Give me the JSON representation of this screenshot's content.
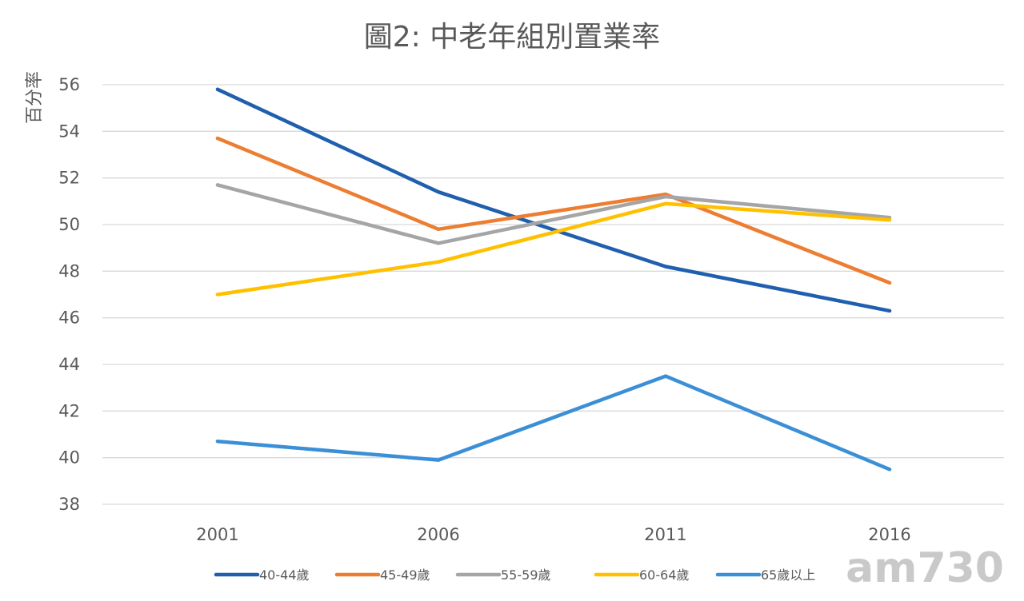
{
  "chart_data": {
    "type": "line",
    "title": "圖2: 中老年組別置業率",
    "xlabel": "",
    "ylabel": "百分率",
    "categories": [
      "2001",
      "2006",
      "2011",
      "2016"
    ],
    "ylim": [
      38,
      56
    ],
    "yticks": [
      38,
      40,
      42,
      44,
      46,
      48,
      50,
      52,
      54,
      56
    ],
    "grid": true,
    "legend_position": "bottom",
    "series": [
      {
        "name": "40-44歲",
        "color": "#1f5fae",
        "values": [
          55.8,
          51.4,
          48.2,
          46.3
        ]
      },
      {
        "name": "45-49歲",
        "color": "#ed7d31",
        "values": [
          53.7,
          49.8,
          51.3,
          47.5
        ]
      },
      {
        "name": "55-59歲",
        "color": "#a5a5a5",
        "values": [
          51.7,
          49.2,
          51.2,
          50.3
        ]
      },
      {
        "name": "60-64歲",
        "color": "#ffc000",
        "values": [
          47.0,
          48.4,
          50.9,
          50.2
        ]
      },
      {
        "name": "65歲以上",
        "color": "#3a8fd6",
        "values": [
          40.7,
          39.9,
          43.5,
          39.5
        ]
      }
    ]
  },
  "watermark": {
    "text": "am730"
  }
}
